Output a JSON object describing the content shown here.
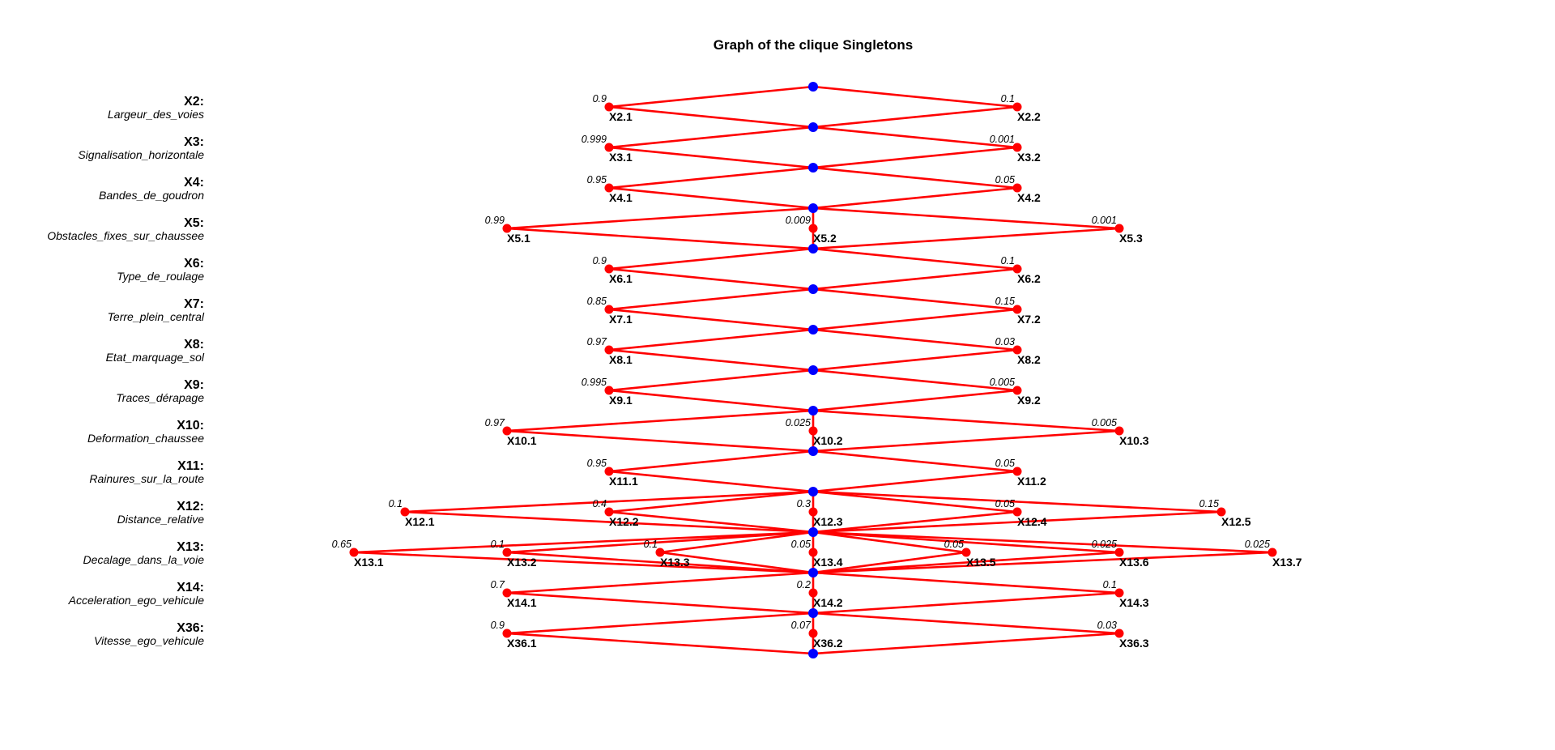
{
  "title": "Graph of the clique Singletons",
  "colors": {
    "edge": "#ff0000",
    "junction": "#0000ff",
    "state": "#ff0000"
  },
  "variables": [
    {
      "code": "X2:",
      "name": "Largeur_des_voies",
      "states": [
        {
          "label": "X2.1",
          "prob": "0.9"
        },
        {
          "label": "X2.2",
          "prob": "0.1"
        }
      ]
    },
    {
      "code": "X3:",
      "name": "Signalisation_horizontale",
      "states": [
        {
          "label": "X3.1",
          "prob": "0.999"
        },
        {
          "label": "X3.2",
          "prob": "0.001"
        }
      ]
    },
    {
      "code": "X4:",
      "name": "Bandes_de_goudron",
      "states": [
        {
          "label": "X4.1",
          "prob": "0.95"
        },
        {
          "label": "X4.2",
          "prob": "0.05"
        }
      ]
    },
    {
      "code": "X5:",
      "name": "Obstacles_fixes_sur_chaussee",
      "states": [
        {
          "label": "X5.1",
          "prob": "0.99"
        },
        {
          "label": "X5.2",
          "prob": "0.009"
        },
        {
          "label": "X5.3",
          "prob": "0.001"
        }
      ]
    },
    {
      "code": "X6:",
      "name": "Type_de_roulage",
      "states": [
        {
          "label": "X6.1",
          "prob": "0.9"
        },
        {
          "label": "X6.2",
          "prob": "0.1"
        }
      ]
    },
    {
      "code": "X7:",
      "name": "Terre_plein_central",
      "states": [
        {
          "label": "X7.1",
          "prob": "0.85"
        },
        {
          "label": "X7.2",
          "prob": "0.15"
        }
      ]
    },
    {
      "code": "X8:",
      "name": "Etat_marquage_sol",
      "states": [
        {
          "label": "X8.1",
          "prob": "0.97"
        },
        {
          "label": "X8.2",
          "prob": "0.03"
        }
      ]
    },
    {
      "code": "X9:",
      "name": "Traces_dérapage",
      "states": [
        {
          "label": "X9.1",
          "prob": "0.995"
        },
        {
          "label": "X9.2",
          "prob": "0.005"
        }
      ]
    },
    {
      "code": "X10:",
      "name": "Deformation_chaussee",
      "states": [
        {
          "label": "X10.1",
          "prob": "0.97"
        },
        {
          "label": "X10.2",
          "prob": "0.025"
        },
        {
          "label": "X10.3",
          "prob": "0.005"
        }
      ]
    },
    {
      "code": "X11:",
      "name": "Rainures_sur_la_route",
      "states": [
        {
          "label": "X11.1",
          "prob": "0.95"
        },
        {
          "label": "X11.2",
          "prob": "0.05"
        }
      ]
    },
    {
      "code": "X12:",
      "name": "Distance_relative",
      "states": [
        {
          "label": "X12.1",
          "prob": "0.1"
        },
        {
          "label": "X12.2",
          "prob": "0.4"
        },
        {
          "label": "X12.3",
          "prob": "0.3"
        },
        {
          "label": "X12.4",
          "prob": "0.05"
        },
        {
          "label": "X12.5",
          "prob": "0.15"
        }
      ]
    },
    {
      "code": "X13:",
      "name": "Decalage_dans_la_voie",
      "states": [
        {
          "label": "X13.1",
          "prob": "0.65"
        },
        {
          "label": "X13.2",
          "prob": "0.1"
        },
        {
          "label": "X13.3",
          "prob": "0.1"
        },
        {
          "label": "X13.4",
          "prob": "0.05"
        },
        {
          "label": "X13.5",
          "prob": "0.05"
        },
        {
          "label": "X13.6",
          "prob": "0.025"
        },
        {
          "label": "X13.7",
          "prob": "0.025"
        }
      ]
    },
    {
      "code": "X14:",
      "name": "Acceleration_ego_vehicule",
      "states": [
        {
          "label": "X14.1",
          "prob": "0.7"
        },
        {
          "label": "X14.2",
          "prob": "0.2"
        },
        {
          "label": "X14.3",
          "prob": "0.1"
        }
      ]
    },
    {
      "code": "X36:",
      "name": "Vitesse_ego_vehicule",
      "states": [
        {
          "label": "X36.1",
          "prob": "0.9"
        },
        {
          "label": "X36.2",
          "prob": "0.07"
        },
        {
          "label": "X36.3",
          "prob": "0.03"
        }
      ]
    }
  ]
}
